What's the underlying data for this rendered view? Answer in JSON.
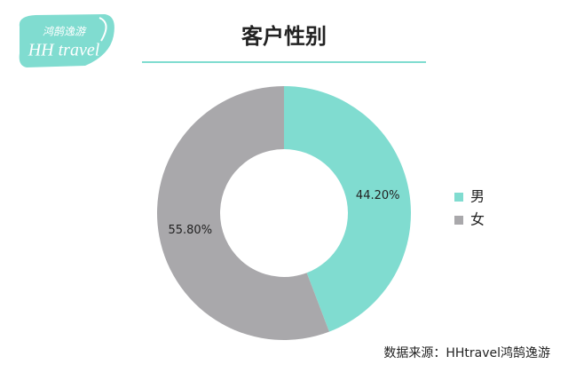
{
  "logo": {
    "chinese": "鸿鹄逸游",
    "english": "HH travel"
  },
  "chart_data": {
    "type": "donut",
    "title": "客户性别",
    "categories": [
      "男",
      "女"
    ],
    "values": [
      44.2,
      55.8
    ],
    "value_labels": [
      "44.20%",
      "55.80%"
    ],
    "colors": [
      "#80dcd0",
      "#a9a8ab"
    ],
    "legend": "right",
    "source": "数据来源：HHtravel鸿鹄逸游"
  }
}
